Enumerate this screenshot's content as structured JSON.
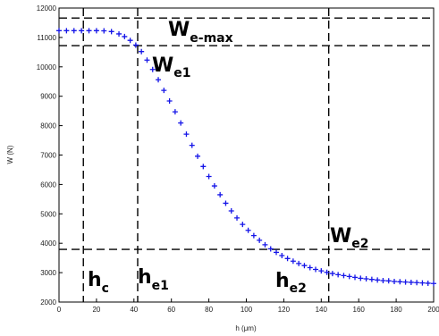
{
  "chart_data": {
    "type": "scatter",
    "xlabel": "h (μm)",
    "ylabel": "W (N)",
    "xlim": [
      0,
      200
    ],
    "ylim": [
      2000,
      12000
    ],
    "xticks": [
      "0",
      "20",
      "40",
      "60",
      "80",
      "100",
      "120",
      "140",
      "160",
      "180",
      "200"
    ],
    "yticks": [
      "2000",
      "3000",
      "4000",
      "5000",
      "6000",
      "7000",
      "8000",
      "9000",
      "10000",
      "11000",
      "12000"
    ],
    "grid": false,
    "marker": "plus",
    "color": "#1515e8",
    "series": [
      {
        "values": [
          [
            0,
            11230
          ],
          [
            4,
            11230
          ],
          [
            8,
            11230
          ],
          [
            12,
            11230
          ],
          [
            16,
            11230
          ],
          [
            20,
            11230
          ],
          [
            24,
            11225
          ],
          [
            28,
            11200
          ],
          [
            32,
            11120
          ],
          [
            35,
            11030
          ],
          [
            38,
            10900
          ],
          [
            41,
            10740
          ],
          [
            44,
            10520
          ],
          [
            47,
            10230
          ],
          [
            50,
            9910
          ],
          [
            53,
            9560
          ],
          [
            56,
            9200
          ],
          [
            59,
            8840
          ],
          [
            62,
            8470
          ],
          [
            65,
            8090
          ],
          [
            68,
            7710
          ],
          [
            71,
            7330
          ],
          [
            74,
            6960
          ],
          [
            77,
            6610
          ],
          [
            80,
            6270
          ],
          [
            83,
            5950
          ],
          [
            86,
            5650
          ],
          [
            89,
            5360
          ],
          [
            92,
            5100
          ],
          [
            95,
            4860
          ],
          [
            98,
            4640
          ],
          [
            101,
            4440
          ],
          [
            104,
            4260
          ],
          [
            107,
            4100
          ],
          [
            110,
            3950
          ],
          [
            113,
            3810
          ],
          [
            116,
            3690
          ],
          [
            119,
            3580
          ],
          [
            122,
            3480
          ],
          [
            125,
            3390
          ],
          [
            128,
            3310
          ],
          [
            131,
            3240
          ],
          [
            134,
            3170
          ],
          [
            137,
            3110
          ],
          [
            140,
            3060
          ],
          [
            143,
            3010
          ],
          [
            146,
            2970
          ],
          [
            149,
            2930
          ],
          [
            152,
            2900
          ],
          [
            155,
            2870
          ],
          [
            158,
            2840
          ],
          [
            161,
            2810
          ],
          [
            164,
            2790
          ],
          [
            167,
            2770
          ],
          [
            170,
            2750
          ],
          [
            173,
            2730
          ],
          [
            176,
            2720
          ],
          [
            179,
            2700
          ],
          [
            182,
            2690
          ],
          [
            185,
            2680
          ],
          [
            188,
            2670
          ],
          [
            191,
            2660
          ],
          [
            194,
            2650
          ],
          [
            197,
            2640
          ],
          [
            200,
            2630
          ]
        ]
      }
    ],
    "reference_lines": {
      "vertical": [
        13,
        42,
        144
      ],
      "horizontal": [
        11660,
        10720,
        3790
      ]
    },
    "annotations": [
      {
        "main": "W",
        "sub": "e-max"
      },
      {
        "main": "W",
        "sub": "e1"
      },
      {
        "main": "W",
        "sub": "e2"
      },
      {
        "main": "h",
        "sub": "c"
      },
      {
        "main": "h",
        "sub": "e1"
      },
      {
        "main": "h",
        "sub": "e2"
      }
    ]
  }
}
